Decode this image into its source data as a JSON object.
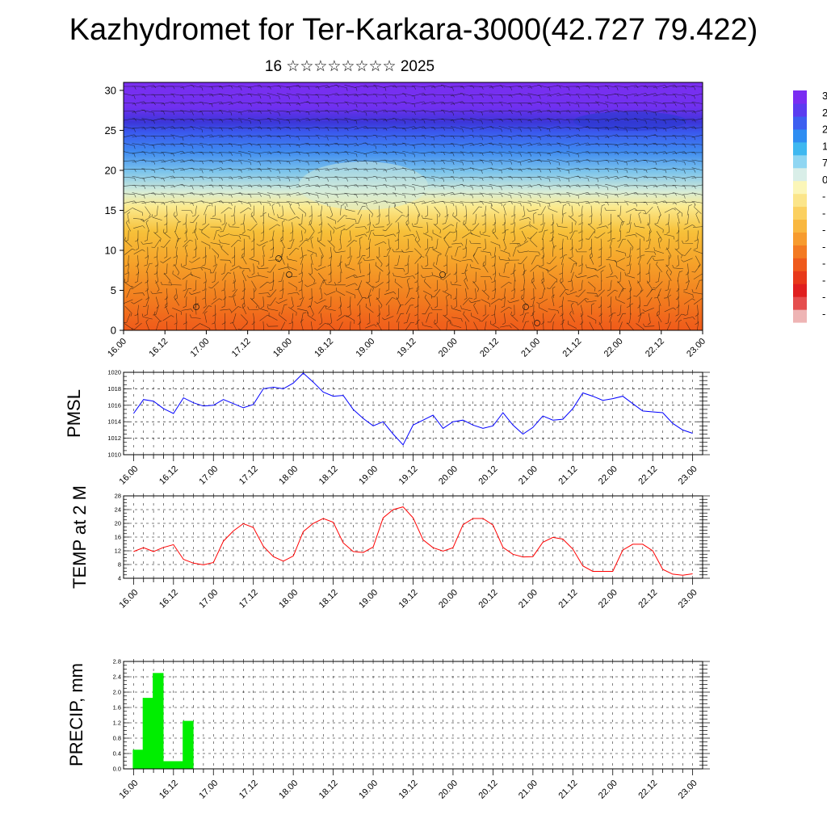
{
  "title": "Kazhydromet for Ter-Karkara-3000(42.727 79.422)",
  "subtitle": "16 ☆☆☆☆☆☆☆☆ 2025",
  "time_ticks": [
    "16.00",
    "16.12",
    "17.00",
    "17.12",
    "18.00",
    "18.12",
    "19.00",
    "19.12",
    "20.00",
    "20.12",
    "21.00",
    "21.12",
    "22.00",
    "22.12",
    "23.00"
  ],
  "colorbar": {
    "colors": [
      "#7a2df2",
      "#5b3cf0",
      "#3d5ff0",
      "#2f8df2",
      "#3fb8f0",
      "#8fd6f2",
      "#d9eee8",
      "#fbf6b8",
      "#fbe58a",
      "#fbd060",
      "#f9b73f",
      "#f79b2e",
      "#f37a22",
      "#ef5a1c",
      "#e8391a",
      "#e01f1f",
      "#e54e4e",
      "#eeb4b4"
    ],
    "labels": [
      "3",
      "2",
      "2",
      "1",
      "7",
      "0",
      "-",
      "-",
      "-",
      "-",
      "-",
      "-",
      "-",
      "-"
    ]
  },
  "chart_data": [
    {
      "type": "heatmap",
      "title": "",
      "x_ticks": [
        "16.00",
        "16.12",
        "17.00",
        "17.12",
        "18.00",
        "18.12",
        "19.00",
        "19.12",
        "20.00",
        "20.12",
        "21.00",
        "21.12",
        "22.00",
        "22.12",
        "23.00"
      ],
      "y_ticks": [
        0,
        5,
        10,
        15,
        20,
        25,
        30
      ],
      "ylim": [
        0,
        31
      ],
      "description_fields": {
        "overlay": "wind barbs"
      }
    },
    {
      "type": "line",
      "ylabel": "PMSL",
      "ylim": [
        1010,
        1020
      ],
      "y_ticks": [
        "1010",
        "1012",
        "1014",
        "1016",
        "1018",
        "1020"
      ],
      "x_ticks": [
        "16.00",
        "16.12",
        "17.00",
        "17.12",
        "18.00",
        "18.12",
        "19.00",
        "19.12",
        "20.00",
        "20.12",
        "21.00",
        "21.12",
        "22.00",
        "22.12",
        "23.00"
      ],
      "grid": true,
      "color": "#0000ff",
      "values": [
        1015.0,
        1016.7,
        1016.5,
        1015.6,
        1015.0,
        1016.9,
        1016.3,
        1015.9,
        1016.0,
        1016.7,
        1016.2,
        1015.7,
        1016.1,
        1018.0,
        1018.2,
        1018.0,
        1018.7,
        1019.9,
        1018.8,
        1017.6,
        1017.1,
        1017.2,
        1015.5,
        1014.4,
        1013.5,
        1014.0,
        1012.5,
        1011.2,
        1013.6,
        1014.2,
        1014.8,
        1013.2,
        1014.0,
        1014.2,
        1013.6,
        1013.2,
        1013.5,
        1015.1,
        1013.6,
        1012.5,
        1013.3,
        1014.7,
        1014.2,
        1014.3,
        1015.6,
        1017.5,
        1017.1,
        1016.6,
        1016.8,
        1017.1,
        1016.2,
        1015.3,
        1015.2,
        1015.1,
        1013.8,
        1013.0,
        1012.6
      ]
    },
    {
      "type": "line",
      "ylabel": "TEMP at 2 M",
      "ylim": [
        4,
        28
      ],
      "y_ticks": [
        "4",
        "8",
        "12",
        "16",
        "20",
        "24",
        "28"
      ],
      "x_ticks": [
        "16.00",
        "16.12",
        "17.00",
        "17.12",
        "18.00",
        "18.12",
        "19.00",
        "19.12",
        "20.00",
        "20.12",
        "21.00",
        "21.12",
        "22.00",
        "22.12",
        "23.00"
      ],
      "grid": true,
      "color": "#ff0000",
      "values": [
        11.8,
        12.9,
        11.8,
        13.0,
        13.8,
        9.5,
        8.4,
        7.9,
        8.6,
        14.8,
        17.8,
        19.9,
        18.8,
        13.3,
        10.3,
        9.0,
        10.5,
        17.6,
        20.0,
        21.4,
        20.3,
        14.3,
        11.8,
        11.5,
        13.1,
        21.6,
        24.0,
        24.8,
        21.6,
        15.2,
        12.9,
        11.9,
        12.9,
        19.6,
        21.4,
        21.4,
        19.5,
        13.0,
        11.0,
        10.2,
        10.3,
        14.5,
        15.9,
        15.4,
        12.5,
        7.6,
        6.0,
        6.0,
        6.0,
        12.2,
        13.9,
        13.9,
        12.0,
        6.6,
        5.2,
        4.9,
        5.3
      ]
    },
    {
      "type": "bar",
      "ylabel": "PRECIP, mm",
      "ylim": [
        0,
        2.8
      ],
      "y_ticks": [
        "0.0",
        "0.4",
        "0.8",
        "1.2",
        "1.6",
        "2.0",
        "2.4",
        "2.8"
      ],
      "x_ticks": [
        "16.00",
        "16.12",
        "17.00",
        "17.12",
        "18.00",
        "18.12",
        "19.00",
        "19.12",
        "20.00",
        "20.12",
        "21.00",
        "21.12",
        "22.00",
        "22.12",
        "23.00"
      ],
      "grid": true,
      "color": "#00ee00",
      "values": [
        0.5,
        1.85,
        2.5,
        0.2,
        0.2,
        1.25,
        0,
        0,
        0,
        0,
        0,
        0,
        0,
        0,
        0,
        0,
        0,
        0,
        0,
        0,
        0,
        0,
        0,
        0,
        0,
        0,
        0,
        0,
        0,
        0,
        0,
        0,
        0,
        0,
        0,
        0,
        0,
        0,
        0,
        0,
        0,
        0,
        0,
        0,
        0,
        0,
        0,
        0,
        0,
        0,
        0,
        0,
        0,
        0,
        0,
        0,
        0
      ]
    }
  ]
}
